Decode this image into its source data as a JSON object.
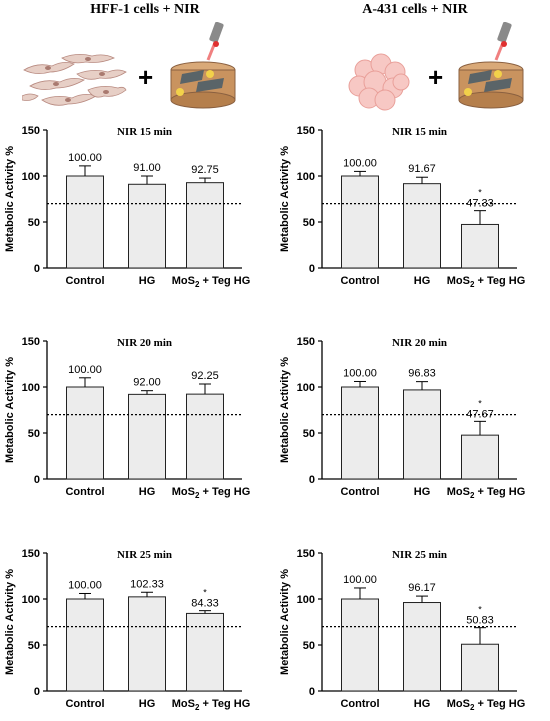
{
  "columns": [
    {
      "title": "HFF-1 cells + NIR"
    },
    {
      "title": "A-431 cells + NIR"
    }
  ],
  "icons": {
    "plus": "+",
    "fibroblast": "fibroblast-cells-icon",
    "tumor": "tumor-cell-cluster-icon",
    "dish": "hydrogel-dish-with-nir-laser-icon"
  },
  "colors": {
    "bar_fill": "#ececec",
    "bar_stroke": "#222222",
    "threshold": "#000000"
  },
  "chart_data": [
    {
      "type": "bar",
      "title": "NIR 15 min",
      "ylabel": "Metabolic Activity %",
      "ylim": [
        0,
        150
      ],
      "yticks": [
        0,
        50,
        100,
        150
      ],
      "categories": [
        "Control",
        "HG",
        "MoS2 + Teg HG"
      ],
      "values": [
        100.0,
        91.0,
        92.75
      ],
      "errors": [
        11,
        9,
        5
      ],
      "value_labels": [
        "100.00",
        "91.00",
        "92.75"
      ],
      "significance": [
        "",
        "",
        ""
      ],
      "threshold": 70
    },
    {
      "type": "bar",
      "title": "NIR 15 min",
      "ylabel": "Metabolic Activity %",
      "ylim": [
        0,
        150
      ],
      "yticks": [
        0,
        50,
        100,
        150
      ],
      "categories": [
        "Control",
        "HG",
        "MoS2 + Teg HG"
      ],
      "values": [
        100.0,
        91.67,
        47.33
      ],
      "errors": [
        5,
        7,
        15
      ],
      "value_labels": [
        "100.00",
        "91.67",
        "47.33"
      ],
      "significance": [
        "",
        "",
        "*"
      ],
      "threshold": 70
    },
    {
      "type": "bar",
      "title": "NIR 20 min",
      "ylabel": "Metabolic Activity %",
      "ylim": [
        0,
        150
      ],
      "yticks": [
        0,
        50,
        100,
        150
      ],
      "categories": [
        "Control",
        "HG",
        "MoS2 + Teg HG"
      ],
      "values": [
        100.0,
        92.0,
        92.25
      ],
      "errors": [
        10,
        4,
        11
      ],
      "value_labels": [
        "100.00",
        "92.00",
        "92.25"
      ],
      "significance": [
        "",
        "",
        ""
      ],
      "threshold": 70
    },
    {
      "type": "bar",
      "title": "NIR 20 min",
      "ylabel": "Metabolic Activity %",
      "ylim": [
        0,
        150
      ],
      "yticks": [
        0,
        50,
        100,
        150
      ],
      "categories": [
        "Control",
        "HG",
        "MoS2 + Teg HG"
      ],
      "values": [
        100.0,
        96.83,
        47.67
      ],
      "errors": [
        6,
        9,
        15
      ],
      "value_labels": [
        "100.00",
        "96.83",
        "47.67"
      ],
      "significance": [
        "",
        "",
        "*"
      ],
      "threshold": 70
    },
    {
      "type": "bar",
      "title": "NIR 25 min",
      "ylabel": "Metabolic Activity %",
      "ylim": [
        0,
        150
      ],
      "yticks": [
        0,
        50,
        100,
        150
      ],
      "categories": [
        "Control",
        "HG",
        "MoS2 + Teg HG"
      ],
      "values": [
        100.0,
        102.33,
        84.33
      ],
      "errors": [
        6,
        5,
        3
      ],
      "value_labels": [
        "100.00",
        "102.33",
        "84.33"
      ],
      "significance": [
        "",
        "",
        "*"
      ],
      "threshold": 70
    },
    {
      "type": "bar",
      "title": "NIR 25 min",
      "ylabel": "Metabolic Activity %",
      "ylim": [
        0,
        150
      ],
      "yticks": [
        0,
        50,
        100,
        150
      ],
      "categories": [
        "Control",
        "HG",
        "MoS2 + Teg HG"
      ],
      "values": [
        100.0,
        96.17,
        50.83
      ],
      "errors": [
        12,
        7,
        18
      ],
      "value_labels": [
        "100.00",
        "96.17",
        "50.83"
      ],
      "significance": [
        "",
        "",
        "*"
      ],
      "threshold": 70
    }
  ]
}
